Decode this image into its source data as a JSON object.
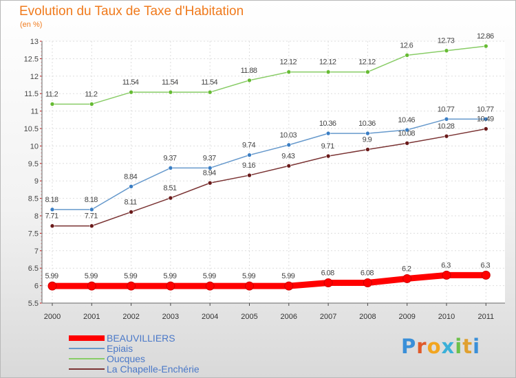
{
  "title": "Evolution du Taux de Taxe d'Habitation",
  "unit_label": "(en %)",
  "logo": {
    "text": "Proxiti",
    "letter_colors": [
      "#3a8fd8",
      "#e05a2a",
      "#f2a51f",
      "#3bb0d8",
      "#6cc04a",
      "#e0a030",
      "#3a8fd8"
    ]
  },
  "chart_data": {
    "type": "line",
    "title": "Evolution du Taux de Taxe d'Habitation",
    "ylabel": "(en %)",
    "xlabel": "",
    "x": [
      "2000",
      "2001",
      "2002",
      "2003",
      "2004",
      "2005",
      "2006",
      "2007",
      "2008",
      "2009",
      "2010",
      "2011"
    ],
    "ylim": [
      5.5,
      13
    ],
    "yticks": [
      "5.5",
      "6",
      "6.5",
      "7",
      "7.5",
      "8",
      "8.5",
      "9",
      "9.5",
      "10",
      "10.5",
      "11",
      "11.5",
      "12",
      "12.5",
      "13"
    ],
    "grid": true,
    "legend": "bottom-left",
    "series": [
      {
        "name": "BEAUVILLIERS",
        "color": "#ff0000",
        "marker": "#ff0000",
        "values": [
          5.99,
          5.99,
          5.99,
          5.99,
          5.99,
          5.99,
          5.99,
          6.08,
          6.08,
          6.2,
          6.3,
          6.3
        ],
        "labels": [
          "5.99",
          "5.99",
          "5.99",
          "5.99",
          "5.99",
          "5.99",
          "5.99",
          "6.08",
          "6.08",
          "6.2",
          "6.3",
          "6.3"
        ]
      },
      {
        "name": "Epiais",
        "color": "#6699cc",
        "marker": "#3a7ec4",
        "values": [
          8.18,
          8.18,
          8.84,
          9.37,
          9.37,
          9.74,
          10.03,
          10.36,
          10.36,
          10.46,
          10.77,
          10.77
        ],
        "labels": [
          "8.18",
          "8.18",
          "8.84",
          "9.37",
          "9.37",
          "9.74",
          "10.03",
          "10.36",
          "10.36",
          "10.46",
          "10.77",
          "10.77"
        ]
      },
      {
        "name": "Oucques",
        "color": "#88cc66",
        "marker": "#66bb33",
        "values": [
          11.2,
          11.2,
          11.54,
          11.54,
          11.54,
          11.88,
          12.12,
          12.12,
          12.12,
          12.6,
          12.73,
          12.86
        ],
        "labels": [
          "11.2",
          "11.2",
          "11.54",
          "11.54",
          "11.54",
          "11.88",
          "12.12",
          "12.12",
          "12.12",
          "12.6",
          "12.73",
          "12.86"
        ]
      },
      {
        "name": "La Chapelle-Enchérie",
        "color": "#7a3333",
        "marker": "#6a1a1a",
        "values": [
          7.71,
          7.71,
          8.11,
          8.51,
          8.94,
          9.16,
          9.43,
          9.71,
          9.9,
          10.08,
          10.28,
          10.49
        ],
        "labels": [
          "7.71",
          "7.71",
          "8.11",
          "8.51",
          "8.94",
          "9.16",
          "9.43",
          "9.71",
          "9.9",
          "10.08",
          "10.28",
          "10.49"
        ]
      }
    ]
  }
}
